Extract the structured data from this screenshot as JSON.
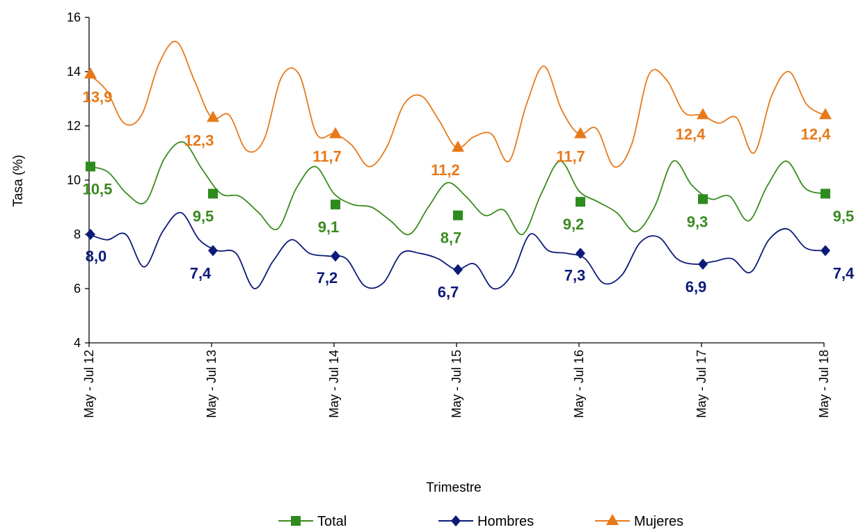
{
  "chart_data": {
    "type": "line",
    "title": "",
    "xlabel": "Trimestre",
    "ylabel": "Tasa (%)",
    "ylim": [
      4,
      16
    ],
    "yticks": [
      "4",
      "6",
      "8",
      "10",
      "12",
      "14",
      "16"
    ],
    "grid": false,
    "legend_position": "bottom",
    "categories": [
      "May - Jul 12",
      "May - Jul 13",
      "May - Jul 14",
      "May - Jul 15",
      "May - Jul 16",
      "May - Jul 17",
      "May - Jul 18"
    ],
    "series": [
      {
        "name": "Total",
        "color": "#3a8a1f",
        "marker_color": "#2e8b1e",
        "marker": "square",
        "values": [
          10.5,
          9.5,
          9.1,
          8.7,
          9.2,
          9.3,
          9.5
        ],
        "value_labels": [
          "10,5",
          "9,5",
          "9,1",
          "8,7",
          "9,2",
          "9,3",
          "9,5"
        ],
        "path": [
          10.5,
          10.3,
          9.5,
          9.2,
          10.8,
          11.4,
          10.4,
          9.5,
          9.4,
          8.8,
          8.2,
          9.7,
          10.5,
          9.5,
          9.1,
          9.0,
          8.5,
          8.0,
          9.0,
          9.9,
          9.4,
          8.7,
          8.9,
          8.0,
          9.5,
          10.7,
          9.6,
          9.2,
          8.8,
          8.1,
          9.0,
          10.7,
          9.8,
          9.3,
          9.4,
          8.5,
          9.8,
          10.7,
          9.7,
          9.5
        ]
      },
      {
        "name": "Hombres",
        "color": "#0c1a78",
        "marker_color": "#0c1a78",
        "marker": "diamond",
        "values": [
          8.0,
          7.4,
          7.2,
          6.7,
          7.3,
          6.9,
          7.4
        ],
        "value_labels": [
          "8,0",
          "7,4",
          "7,2",
          "6,7",
          "7,3",
          "6,9",
          "7,4"
        ],
        "path": [
          8.0,
          7.8,
          8.0,
          6.8,
          8.1,
          8.8,
          7.8,
          7.4,
          7.3,
          6.0,
          7.0,
          7.8,
          7.3,
          7.2,
          7.1,
          6.1,
          6.2,
          7.3,
          7.3,
          7.1,
          6.7,
          6.9,
          6.0,
          6.5,
          8.0,
          7.4,
          7.3,
          7.1,
          6.2,
          6.5,
          7.7,
          7.9,
          7.1,
          6.9,
          7.0,
          7.1,
          6.6,
          7.8,
          8.2,
          7.5,
          7.4
        ]
      },
      {
        "name": "Mujeres",
        "color": "#e8791a",
        "marker_color": "#e8791a",
        "marker": "triangle",
        "values": [
          13.9,
          12.3,
          11.7,
          11.2,
          11.7,
          12.4,
          12.4
        ],
        "value_labels": [
          "13,9",
          "12,3",
          "11,7",
          "11,2",
          "11,7",
          "12,4",
          "12,4"
        ],
        "path": [
          13.9,
          13.3,
          12.1,
          12.4,
          14.3,
          15.1,
          13.7,
          12.3,
          12.4,
          11.1,
          11.5,
          13.8,
          13.9,
          11.7,
          11.7,
          11.3,
          10.5,
          11.2,
          12.8,
          13.1,
          12.2,
          11.2,
          11.6,
          11.7,
          10.7,
          12.8,
          14.2,
          12.6,
          11.7,
          11.9,
          10.5,
          11.3,
          13.9,
          13.7,
          12.5,
          12.4,
          12.1,
          12.3,
          11.0,
          13.1,
          14.0,
          12.8,
          12.4
        ]
      }
    ]
  }
}
